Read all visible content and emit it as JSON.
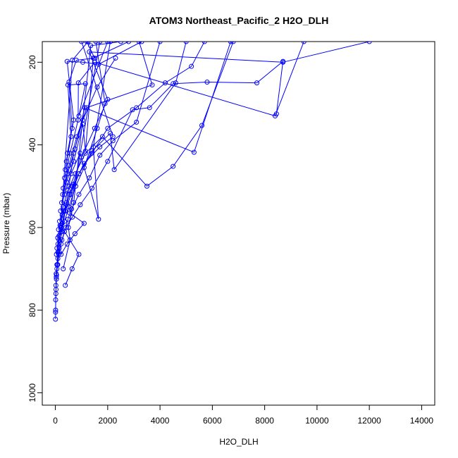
{
  "chart_data": {
    "type": "line",
    "title": "ATOM3 Northeast_Pacific_2 H2O_DLH",
    "xlabel": "H2O_DLH",
    "ylabel": "Pressure (mbar)",
    "xlim": [
      -500,
      14500
    ],
    "ylim": [
      1030,
      150
    ],
    "y_inverted": true,
    "xticks": [
      0,
      2000,
      4000,
      6000,
      8000,
      10000,
      12000,
      14000
    ],
    "yticks": [
      200,
      400,
      600,
      800,
      1000
    ],
    "grid": false,
    "legend": "none",
    "marker": "open-circle",
    "color": "#0000ff",
    "series": [
      {
        "x": [
          5,
          8,
          12,
          25,
          40,
          60,
          95,
          150,
          240,
          380,
          520,
          700,
          1050,
          1600,
          2300
        ],
        "y": [
          822,
          805,
          775,
          750,
          725,
          700,
          675,
          650,
          610,
          560,
          500,
          420,
          340,
          260,
          190
        ]
      },
      {
        "x": [
          10,
          20,
          35,
          60,
          95,
          140,
          230,
          380,
          600,
          900,
          1400,
          2000,
          3100,
          4200,
          5200,
          5700
        ],
        "y": [
          800,
          760,
          720,
          690,
          660,
          630,
          600,
          560,
          520,
          470,
          420,
          360,
          310,
          250,
          210,
          150
        ]
      },
      {
        "x": [
          20,
          45,
          90,
          150,
          250,
          400,
          650,
          950,
          1400,
          2000,
          2950,
          3600,
          4500,
          5800,
          7700,
          8700,
          8450
        ],
        "y": [
          740,
          715,
          690,
          660,
          630,
          600,
          575,
          545,
          505,
          440,
          315,
          310,
          252,
          248,
          250,
          198,
          325
        ]
      },
      {
        "x": [
          30,
          70,
          130,
          220,
          350,
          480,
          620,
          900,
          1300,
          1700,
          2200,
          3100,
          4000
        ],
        "y": [
          712,
          690,
          665,
          640,
          610,
          580,
          555,
          520,
          480,
          425,
          390,
          345,
          150
        ]
      },
      {
        "x": [
          40,
          100,
          200,
          350,
          520,
          780,
          1100,
          1600,
          1900,
          1550
        ],
        "y": [
          665,
          640,
          612,
          585,
          550,
          500,
          455,
          360,
          300,
          150
        ]
      },
      {
        "x": [
          60,
          140,
          260,
          420,
          650,
          1000,
          1500,
          2000,
          1300,
          8700,
          12000
        ],
        "y": [
          650,
          620,
          590,
          545,
          500,
          430,
          360,
          290,
          175,
          200,
          150
        ]
      },
      {
        "x": [
          90,
          180,
          330,
          550,
          900,
          1400,
          2100,
          2250,
          4600,
          5000
        ],
        "y": [
          625,
          595,
          560,
          520,
          470,
          415,
          372,
          460,
          250,
          150
        ]
      },
      {
        "x": [
          120,
          260,
          430,
          700,
          1100,
          1700,
          2200,
          1000
        ],
        "y": [
          605,
          570,
          540,
          495,
          445,
          405,
          380,
          150
        ]
      },
      {
        "x": [
          160,
          300,
          480,
          760,
          1150,
          1800,
          3500,
          4500,
          5600,
          6800
        ],
        "y": [
          585,
          550,
          510,
          470,
          420,
          380,
          500,
          452,
          353,
          150
        ]
      },
      {
        "x": [
          200,
          350,
          600,
          950,
          1650,
          1450,
          2100
        ],
        "y": [
          560,
          520,
          470,
          420,
          580,
          405,
          150
        ]
      },
      {
        "x": [
          240,
          420,
          700,
          1050,
          1150,
          1450,
          2800
        ],
        "y": [
          540,
          490,
          440,
          350,
          415,
          190,
          150
        ]
      },
      {
        "x": [
          280,
          470,
          750,
          1120,
          5300,
          6700
        ],
        "y": [
          520,
          470,
          410,
          310,
          418,
          150
        ]
      },
      {
        "x": [
          300,
          520,
          820,
          1200,
          3700,
          3200
        ],
        "y": [
          505,
          450,
          380,
          310,
          255,
          150
        ]
      },
      {
        "x": [
          350,
          560,
          870,
          880,
          1500,
          8400,
          9500
        ],
        "y": [
          480,
          420,
          340,
          250,
          200,
          330,
          150
        ]
      },
      {
        "x": [
          380,
          600,
          480,
          1150,
          900,
          2000
        ],
        "y": [
          460,
          380,
          255,
          252,
          330,
          150
        ]
      },
      {
        "x": [
          420,
          640,
          520,
          800,
          1500,
          1200
        ],
        "y": [
          440,
          360,
          248,
          195,
          190,
          150
        ]
      },
      {
        "x": [
          460,
          700,
          450,
          1050,
          1650,
          3300
        ],
        "y": [
          420,
          340,
          198,
          200,
          205,
          150
        ]
      },
      {
        "x": [
          300,
          560,
          500,
          700,
          1350,
          2500
        ],
        "y": [
          700,
          630,
          600,
          540,
          160,
          150
        ]
      },
      {
        "x": [
          380,
          640,
          900,
          200,
          650,
          1250
        ],
        "y": [
          740,
          700,
          665,
          595,
          195,
          150
        ]
      },
      {
        "x": [
          220,
          450,
          750,
          1100,
          550,
          1700
        ],
        "y": [
          665,
          640,
          615,
          590,
          565,
          150
        ]
      }
    ]
  }
}
